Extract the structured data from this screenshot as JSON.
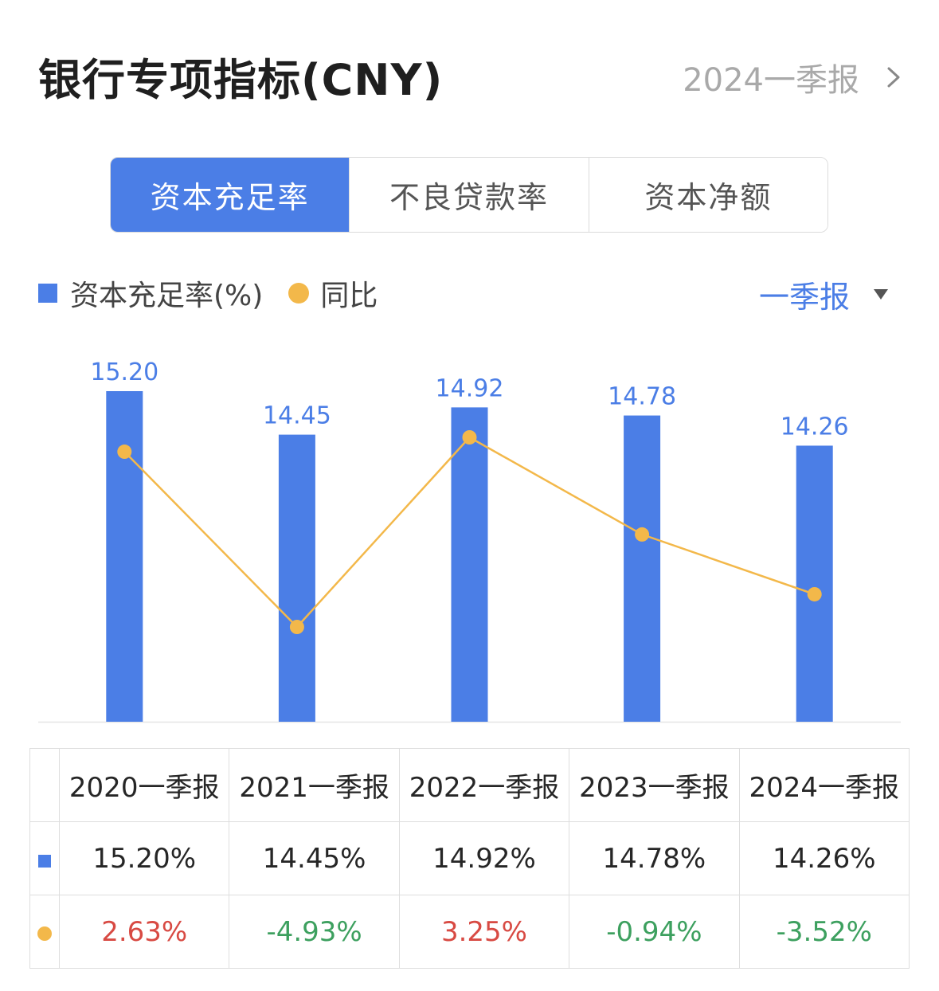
{
  "header": {
    "title": "银行专项指标(CNY)",
    "period_link": "2024一季报"
  },
  "tabs": [
    {
      "label": "资本充足率",
      "active": true
    },
    {
      "label": "不良贷款率",
      "active": false
    },
    {
      "label": "资本净额",
      "active": false
    }
  ],
  "legend": {
    "bar_label": "资本充足率(%)",
    "line_label": "同比"
  },
  "period_select": "一季报",
  "colors": {
    "bar": "#4b7ee6",
    "line": "#f3b84a",
    "positive": "#d84a43",
    "negative": "#3da05f"
  },
  "chart_data": {
    "type": "bar",
    "categories": [
      "2020一季报",
      "2021一季报",
      "2022一季报",
      "2023一季报",
      "2024一季报"
    ],
    "series": [
      {
        "name": "资本充足率(%)",
        "type": "bar",
        "values": [
          15.2,
          14.45,
          14.92,
          14.78,
          14.26
        ]
      },
      {
        "name": "同比",
        "type": "line",
        "values": [
          2.63,
          -4.93,
          3.25,
          -0.94,
          -3.52
        ]
      }
    ],
    "data_labels": [
      "15.20",
      "14.45",
      "14.92",
      "14.78",
      "14.26"
    ]
  },
  "table": {
    "headers": [
      "2020一季报",
      "2021一季报",
      "2022一季报",
      "2023一季报",
      "2024一季报"
    ],
    "ratio_row": [
      "15.20%",
      "14.45%",
      "14.92%",
      "14.78%",
      "14.26%"
    ],
    "yoy_row": [
      "2.63%",
      "-4.93%",
      "3.25%",
      "-0.94%",
      "-3.52%"
    ]
  }
}
